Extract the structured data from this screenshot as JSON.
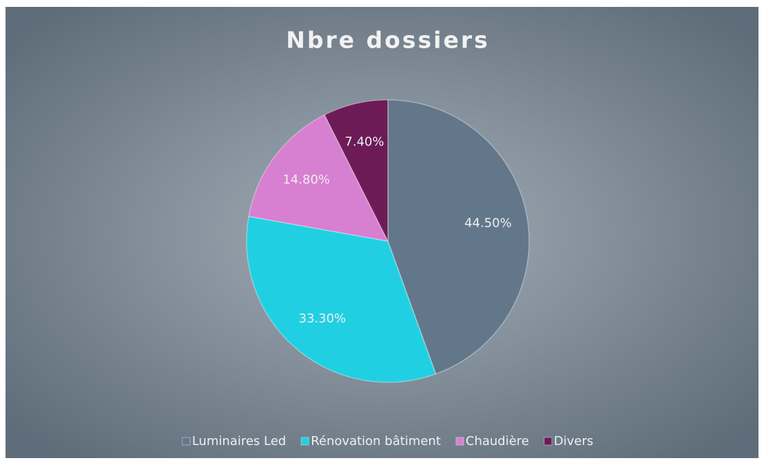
{
  "chart_data": {
    "type": "pie",
    "title": "Nbre dossiers",
    "categories": [
      "Luminaires Led",
      "Rénovation bâtiment",
      "Chaudière",
      "Divers"
    ],
    "values": [
      44.5,
      33.3,
      14.8,
      7.4
    ],
    "value_labels": [
      "44.50%",
      "33.30%",
      "14.80%",
      "7.40%"
    ],
    "colors": [
      "#63778b",
      "#20d0e2",
      "#d77fd0",
      "#6c1b56"
    ],
    "legend": "bottom"
  }
}
